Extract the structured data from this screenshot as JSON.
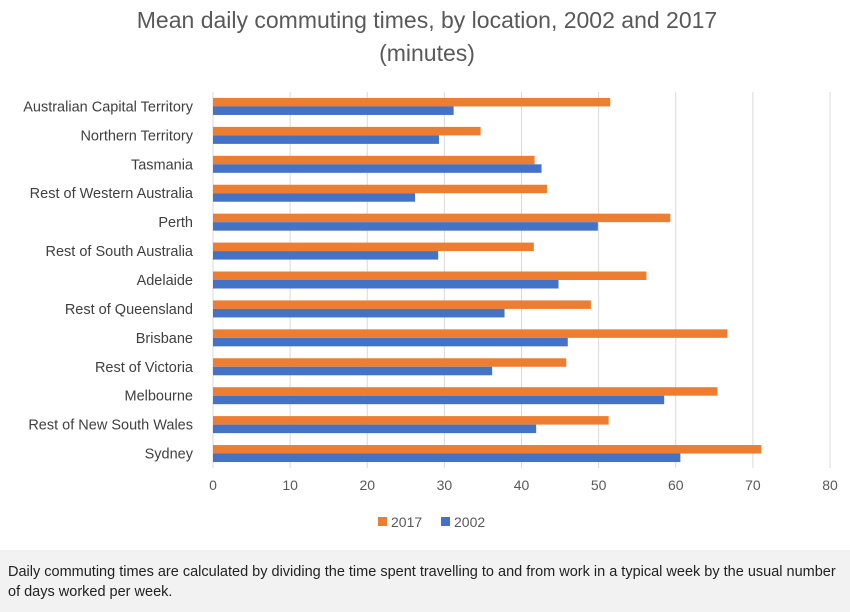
{
  "chart_data": {
    "type": "bar",
    "orientation": "horizontal",
    "title_line1": "Mean daily commuting times, by location, 2002 and 2017",
    "title_line2": "(minutes)",
    "categories": [
      "Australian Capital Territory",
      "Northern Territory",
      "Tasmania",
      "Rest of Western Australia",
      "Perth",
      "Rest of South Australia",
      "Adelaide",
      "Rest of Queensland",
      "Brisbane",
      "Rest of Victoria",
      "Melbourne",
      "Rest of New South Wales",
      "Sydney"
    ],
    "series": [
      {
        "name": "2017",
        "color": "#ed7d31",
        "values": [
          51.5,
          34.7,
          41.7,
          43.3,
          59.3,
          41.6,
          56.2,
          49.0,
          66.7,
          45.8,
          65.4,
          51.3,
          71.1
        ]
      },
      {
        "name": "2002",
        "color": "#4472c4",
        "values": [
          31.2,
          29.3,
          42.6,
          26.2,
          49.9,
          29.2,
          44.8,
          37.8,
          46.0,
          36.2,
          58.5,
          41.9,
          60.6
        ]
      }
    ],
    "xlim": [
      0,
      80
    ],
    "xticks": [
      "0",
      "10",
      "20",
      "30",
      "40",
      "50",
      "60",
      "70",
      "80"
    ],
    "grid": true,
    "legend_position": "bottom",
    "legend": [
      {
        "label": "2017",
        "color": "#ed7d31"
      },
      {
        "label": "2002",
        "color": "#4472c4"
      }
    ]
  },
  "caption": "Daily commuting times are calculated by dividing the time spent travelling to and from work in a typical week by the usual number of days worked per week."
}
